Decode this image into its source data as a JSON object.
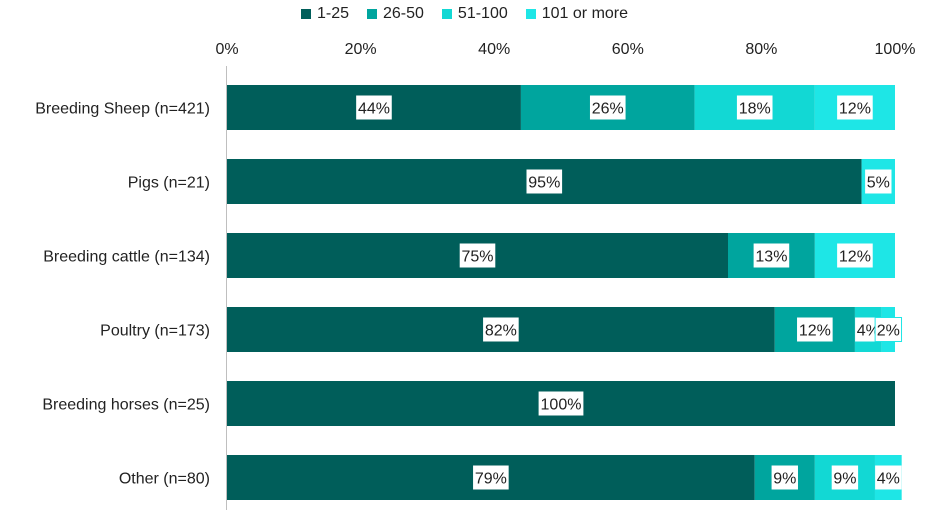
{
  "chart_data": {
    "type": "bar",
    "orientation": "horizontal",
    "stacked": true,
    "categories": [
      "Breeding Sheep (n=421)",
      "Pigs (n=21)",
      "Breeding cattle (n=134)",
      "Poultry (n=173)",
      "Breeding horses (n=25)",
      "Other (n=80)"
    ],
    "series": [
      {
        "name": "1-25",
        "color": "#005e5a",
        "values": [
          44,
          95,
          75,
          82,
          100,
          79
        ]
      },
      {
        "name": "26-50",
        "color": "#00a59e",
        "values": [
          26,
          0,
          13,
          12,
          0,
          9
        ]
      },
      {
        "name": "51-100",
        "color": "#12d8d4",
        "values": [
          18,
          0,
          0,
          4,
          0,
          9
        ]
      },
      {
        "name": "101 or more",
        "color": "#1ee6e6",
        "values": [
          12,
          5,
          12,
          2,
          0,
          4
        ]
      }
    ],
    "data_labels": [
      [
        "44%",
        "26%",
        "18%",
        "12%"
      ],
      [
        "95%",
        "",
        "",
        "5%"
      ],
      [
        "75%",
        "13%",
        "",
        "12%"
      ],
      [
        "82%",
        "12%",
        "4%",
        "2%"
      ],
      [
        "100%",
        "",
        "",
        ""
      ],
      [
        "79%",
        "9%",
        "9%",
        "4%"
      ]
    ],
    "x_ticks": [
      "0%",
      "20%",
      "40%",
      "60%",
      "80%",
      "100%"
    ],
    "xlim": [
      0,
      100
    ],
    "title": "",
    "xlabel": "",
    "ylabel": "",
    "legend_position": "top",
    "grid": false
  }
}
